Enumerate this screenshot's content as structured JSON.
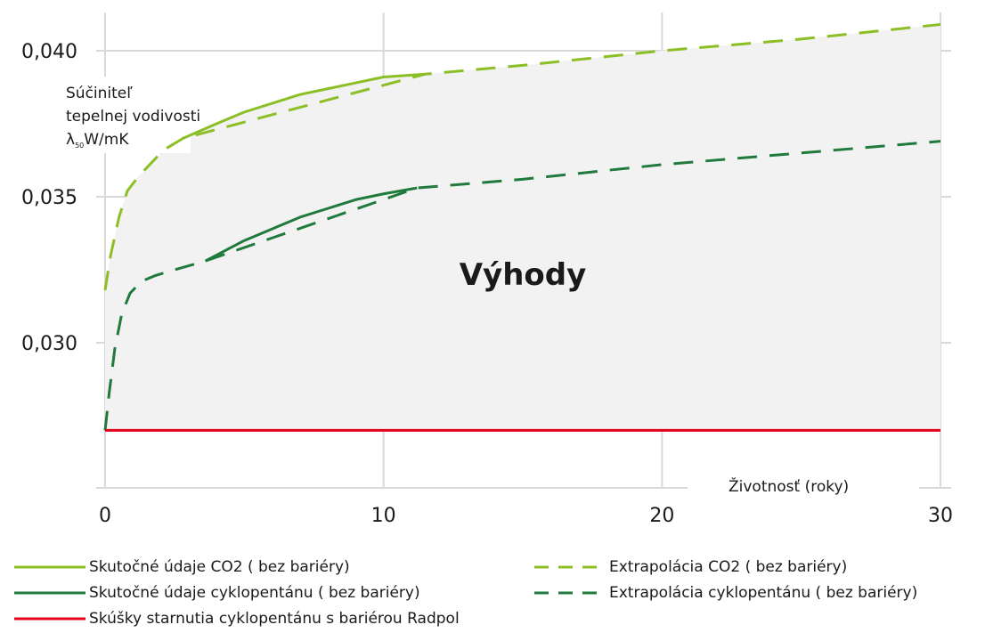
{
  "chart_data": {
    "type": "line",
    "title": "",
    "ylabel_lines": [
      "Súčiniteľ",
      "tepelnej vodivosti",
      "λ",
      "50",
      "W/mK"
    ],
    "xlabel": "Životnosť (roky)",
    "annotation": "Výhody",
    "xlim": [
      0,
      30
    ],
    "ylim": [
      0.0265,
      0.0415
    ],
    "x_ticks": [
      "0",
      "10",
      "20",
      "30"
    ],
    "x_tick_values": [
      0,
      10,
      20,
      30
    ],
    "y_ticks": [
      "0,030",
      "0,035",
      "0,040"
    ],
    "y_tick_values": [
      0.03,
      0.035,
      0.04
    ],
    "grid": true,
    "shaded_region": "between CO2 curve and Radpol line",
    "series": [
      {
        "name": "Skutočné údaje CO2 ( bez bariéry)",
        "style": "solid",
        "color": "#8cbf26",
        "x": [
          2.8,
          4,
          5,
          6,
          7,
          8,
          9,
          10,
          11.5
        ],
        "y": [
          0.037,
          0.0375,
          0.0379,
          0.0382,
          0.0385,
          0.0387,
          0.0389,
          0.0391,
          0.0392
        ]
      },
      {
        "name": "Skutočné údaje cyklopentánu ( bez bariéry)",
        "style": "solid",
        "color": "#1f7a3c",
        "x": [
          3.6,
          5,
          6,
          7,
          8,
          9,
          10,
          11.2
        ],
        "y": [
          0.0328,
          0.0335,
          0.0339,
          0.0343,
          0.0346,
          0.0349,
          0.0351,
          0.0353
        ]
      },
      {
        "name": "Skúšky starnutia cyklopentánu s bariérou Radpol",
        "style": "solid",
        "color": "#e2001a",
        "x": [
          0,
          30
        ],
        "y": [
          0.027,
          0.027
        ]
      },
      {
        "name": "Extrapolácia CO2 ( bez bariéry)",
        "style": "dashed",
        "color": "#8cbf26",
        "x": [
          0,
          0.2,
          0.5,
          0.8,
          1.2,
          1.6,
          2.1,
          2.8,
          11.5,
          15,
          20,
          25,
          30
        ],
        "y": [
          0.0318,
          0.033,
          0.0343,
          0.0352,
          0.0357,
          0.0361,
          0.0366,
          0.037,
          0.0392,
          0.0395,
          0.04,
          0.0404,
          0.0409
        ]
      },
      {
        "name": "Extrapolácia cyklopentánu ( bez bariéry)",
        "style": "dashed",
        "color": "#1f7a3c",
        "x": [
          0,
          0.15,
          0.35,
          0.6,
          0.9,
          1.3,
          1.8,
          2.5,
          3.6,
          11.2,
          15,
          20,
          25,
          30
        ],
        "y": [
          0.027,
          0.0283,
          0.0298,
          0.031,
          0.0317,
          0.0321,
          0.0323,
          0.0325,
          0.0328,
          0.0353,
          0.0356,
          0.0361,
          0.0365,
          0.0369
        ]
      }
    ],
    "legend_placement": "bottom"
  },
  "legend": {
    "left": [
      {
        "label": "Skutočné údaje CO2 ( bez bariéry)",
        "color": "#8cbf26",
        "style": "solid"
      },
      {
        "label": "Skutočné údaje cyklopentánu ( bez bariéry)",
        "color": "#1f7a3c",
        "style": "solid"
      },
      {
        "label": "Skúšky starnutia cyklopentánu s bariérou Radpol",
        "color": "#e2001a",
        "style": "solid"
      }
    ],
    "right": [
      {
        "label": "Extrapolácia CO2 ( bez bariéry)",
        "color": "#8cbf26",
        "style": "dashed"
      },
      {
        "label": "Extrapolácia cyklopentánu ( bez bariéry)",
        "color": "#1f7a3c",
        "style": "dashed"
      }
    ]
  }
}
